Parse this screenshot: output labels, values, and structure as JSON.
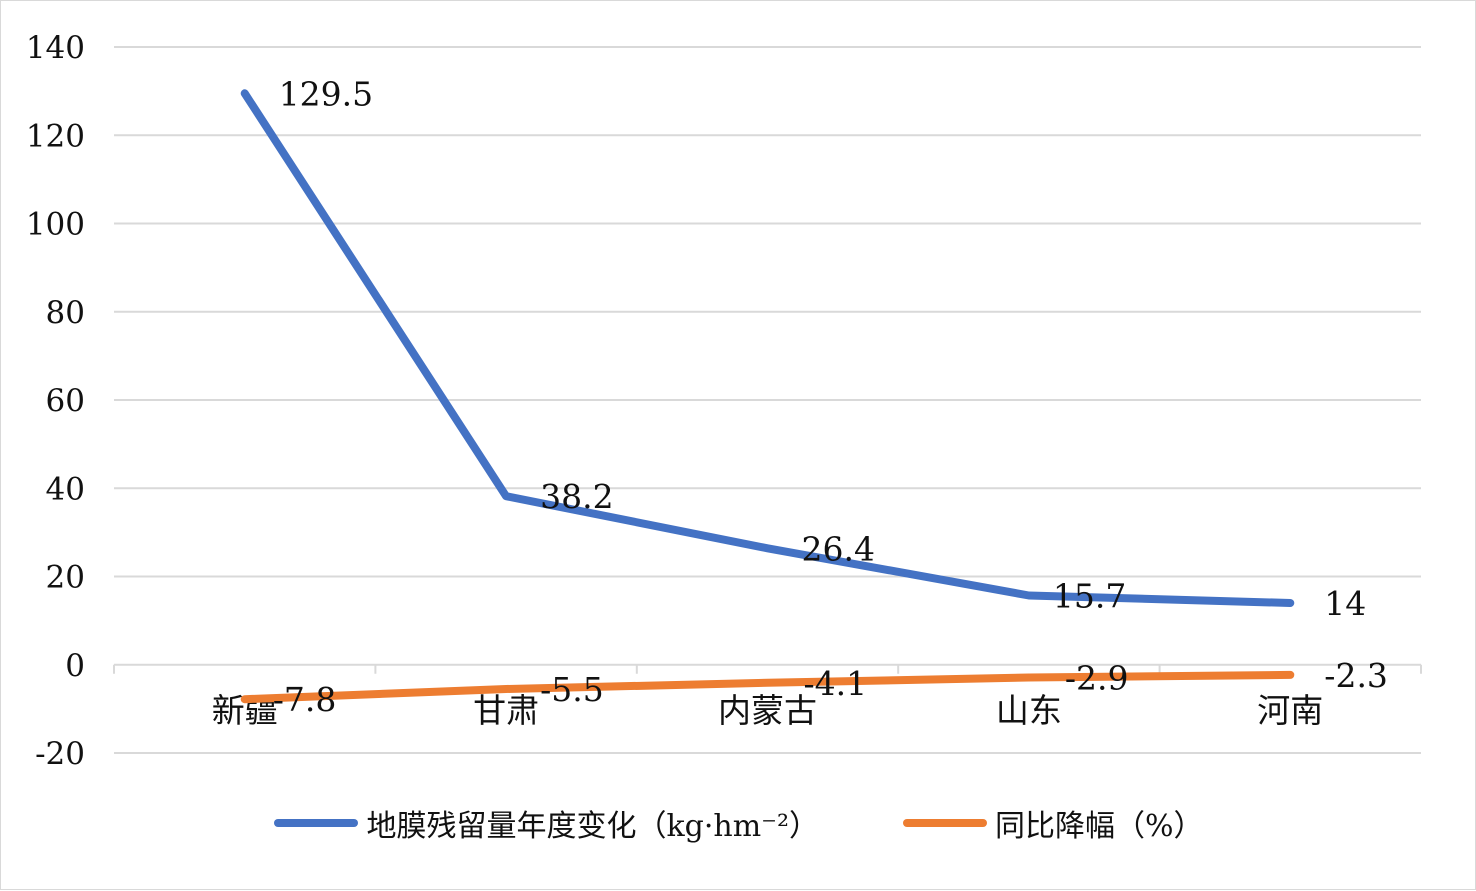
{
  "chart_data": {
    "type": "line",
    "categories": [
      "新疆",
      "甘肃",
      "内蒙古",
      "山东",
      "河南"
    ],
    "series": [
      {
        "name": "地膜残留量年度变化（kg·hm⁻²）",
        "values": [
          129.5,
          38.2,
          26.4,
          15.7,
          14
        ],
        "labels": [
          "129.5",
          "38.2",
          "26.4",
          "15.7",
          "14"
        ],
        "color": "#4472C4"
      },
      {
        "name": "同比降幅（%）",
        "values": [
          -7.8,
          -5.5,
          -4.1,
          -2.9,
          -2.3
        ],
        "labels": [
          "-7.8",
          "-5.5",
          "-4.1",
          "-2.9",
          "-2.3"
        ],
        "color": "#ED7D31"
      }
    ],
    "y_ticks": [
      "140",
      "120",
      "100",
      "80",
      "60",
      "40",
      "20",
      "0",
      "-20"
    ],
    "ylim": [
      -20,
      140
    ],
    "grid": true,
    "legend_position": "bottom",
    "axis_color": "#d9d9d9",
    "text_color": "#111111"
  }
}
